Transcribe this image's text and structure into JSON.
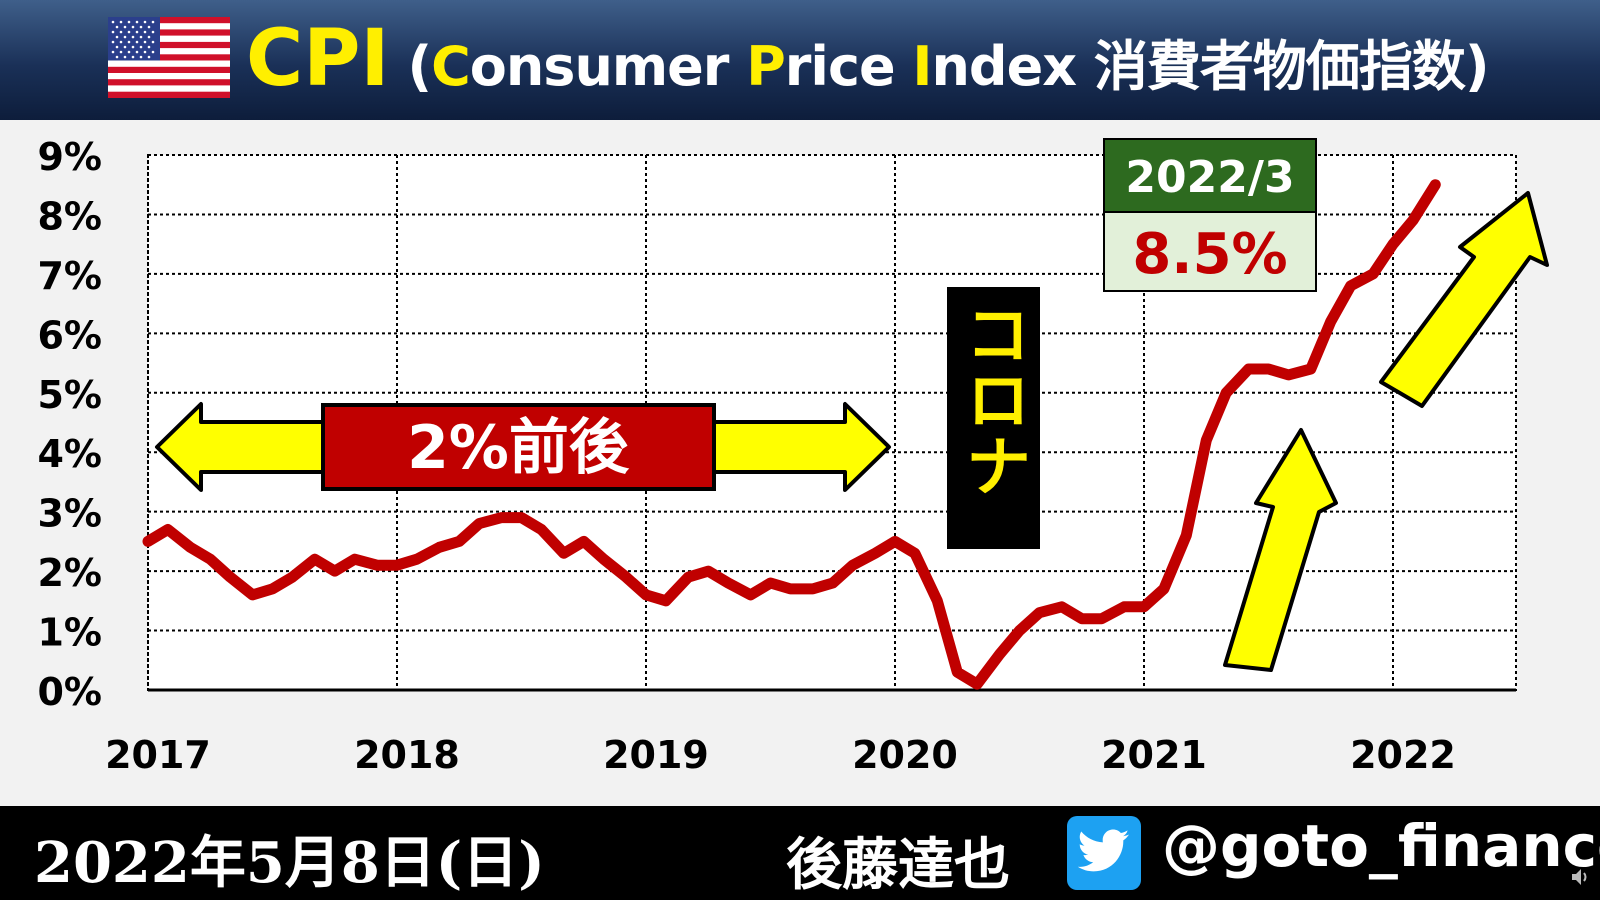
{
  "header": {
    "title_main": "CPI",
    "title_sub": {
      "open": "(",
      "c": "C",
      "onsumer": "onsumer ",
      "p": "P",
      "rice": "rice ",
      "i": "I",
      "ndex": "ndex  消費者物価指数)"
    },
    "flag_icon": "us-flag-icon"
  },
  "chart_data": {
    "type": "line",
    "x_ticks": [
      "2017",
      "2018",
      "2019",
      "2020",
      "2021",
      "2022"
    ],
    "y_ticks": [
      "9%",
      "8%",
      "7%",
      "6%",
      "5%",
      "4%",
      "3%",
      "2%",
      "1%",
      "0%"
    ],
    "ylim": [
      0,
      9
    ],
    "xlim": [
      2017.0,
      2022.5
    ],
    "grid": true,
    "series": [
      {
        "color": "#c00000",
        "x": [
          2017.0,
          2017.08,
          2017.17,
          2017.25,
          2017.33,
          2017.42,
          2017.5,
          2017.58,
          2017.67,
          2017.75,
          2017.83,
          2017.92,
          2018.0,
          2018.08,
          2018.17,
          2018.25,
          2018.33,
          2018.42,
          2018.5,
          2018.58,
          2018.67,
          2018.75,
          2018.83,
          2018.92,
          2019.0,
          2019.08,
          2019.17,
          2019.25,
          2019.33,
          2019.42,
          2019.5,
          2019.58,
          2019.67,
          2019.75,
          2019.83,
          2019.92,
          2020.0,
          2020.08,
          2020.17,
          2020.25,
          2020.33,
          2020.42,
          2020.5,
          2020.58,
          2020.67,
          2020.75,
          2020.83,
          2020.92,
          2021.0,
          2021.08,
          2021.17,
          2021.25,
          2021.33,
          2021.42,
          2021.5,
          2021.58,
          2021.67,
          2021.75,
          2021.83,
          2021.92,
          2022.0,
          2022.08,
          2022.17
        ],
        "values": [
          2.5,
          2.7,
          2.4,
          2.2,
          1.9,
          1.6,
          1.7,
          1.9,
          2.2,
          2.0,
          2.2,
          2.1,
          2.1,
          2.2,
          2.4,
          2.5,
          2.8,
          2.9,
          2.9,
          2.7,
          2.3,
          2.5,
          2.2,
          1.9,
          1.6,
          1.5,
          1.9,
          2.0,
          1.8,
          1.6,
          1.8,
          1.7,
          1.7,
          1.8,
          2.1,
          2.3,
          2.5,
          2.3,
          1.5,
          0.3,
          0.1,
          0.6,
          1.0,
          1.3,
          1.4,
          1.2,
          1.2,
          1.4,
          1.4,
          1.7,
          2.6,
          4.2,
          5.0,
          5.4,
          5.4,
          5.3,
          5.4,
          6.2,
          6.8,
          7.0,
          7.5,
          7.9,
          8.5
        ]
      }
    ],
    "annotations": {
      "band_label": "2%前後",
      "covid_label": "コロナ",
      "callout_date": "2022/3",
      "callout_value": "8.5%"
    }
  },
  "colors": {
    "line": "#c00000",
    "arrow_fill": "#ffff00",
    "callout_header": "#2d6a1f",
    "callout_body": "#e2f0d9",
    "covid_box": "#000000"
  },
  "footer": {
    "date": "2022年5月8日(日)",
    "author": "後藤達也",
    "handle": "@goto_finance",
    "twitter_icon": "twitter-bird-icon",
    "speaker_icon": "speaker-icon"
  }
}
